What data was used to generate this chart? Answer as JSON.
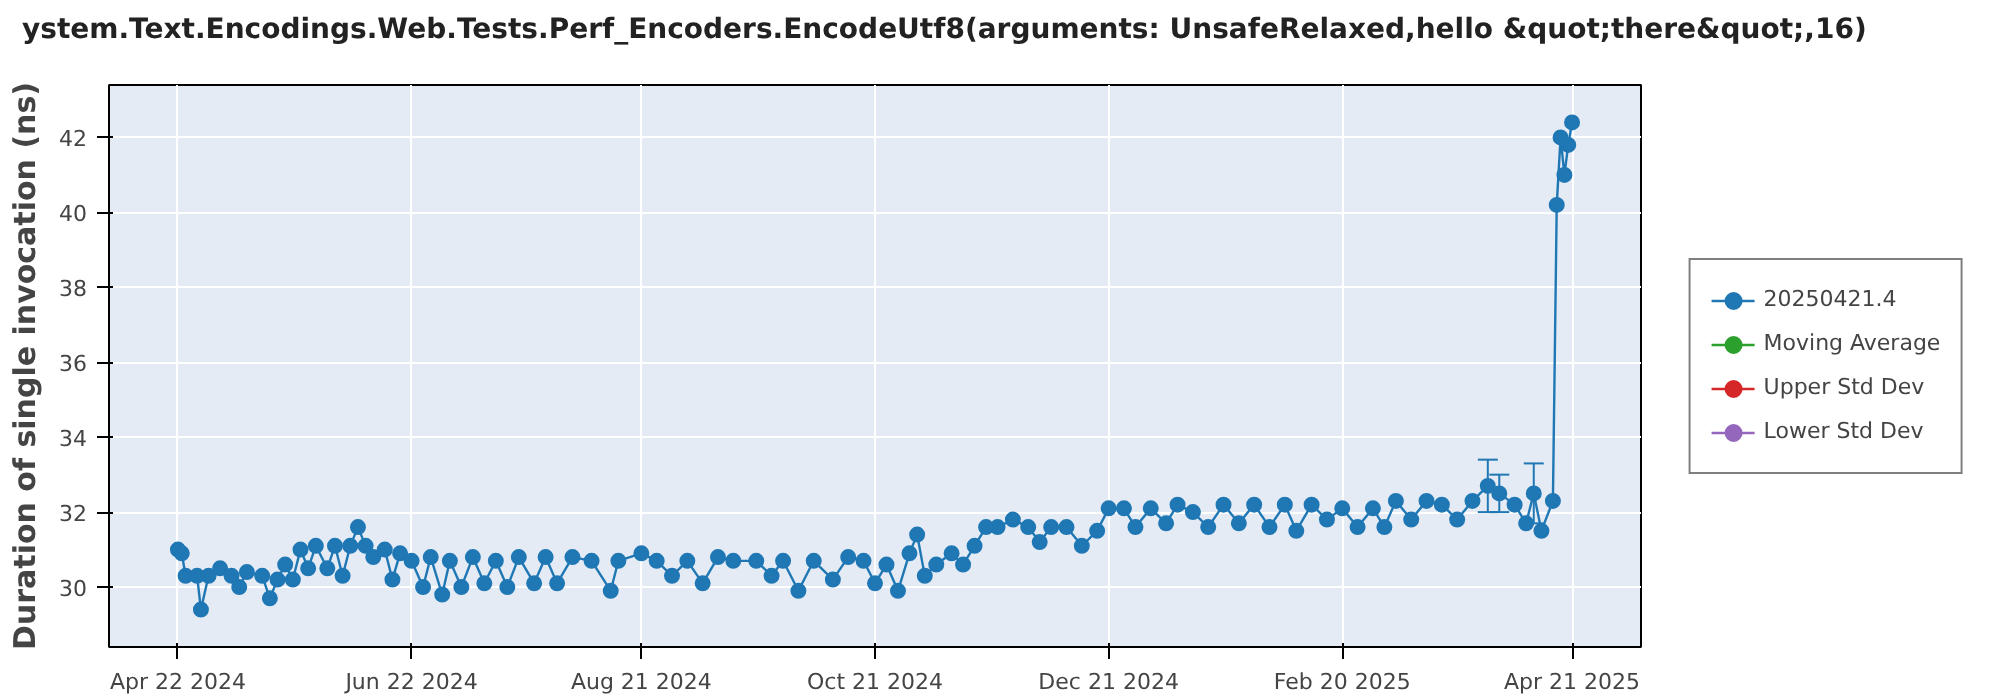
{
  "chart_data": {
    "type": "line",
    "title": "ystem.Text.Encodings.Web.Tests.Perf_Encoders.EncodeUtf8(arguments: UnsafeRelaxed,hello &quot;there&quot;,16)",
    "ylabel": "Duration of single invocation (ns)",
    "xlim": [
      "2024-04-04",
      "2025-05-09"
    ],
    "xticks": [
      {
        "value": "2024-04-22",
        "label": "Apr 22 2024"
      },
      {
        "value": "2024-06-22",
        "label": "Jun 22 2024"
      },
      {
        "value": "2024-08-21",
        "label": "Aug 21 2024"
      },
      {
        "value": "2024-10-21",
        "label": "Oct 21 2024"
      },
      {
        "value": "2024-12-21",
        "label": "Dec 21 2024"
      },
      {
        "value": "2025-02-20",
        "label": "Feb 20 2025"
      },
      {
        "value": "2025-04-21",
        "label": "Apr 21 2025"
      }
    ],
    "ylim": [
      28.4,
      43.4
    ],
    "yticks": [
      30,
      32,
      34,
      36,
      38,
      40,
      42
    ],
    "grid": true,
    "legend": "right",
    "marker": "circle",
    "line_style": "solid",
    "x": [
      "2024-04-22",
      "2024-04-23",
      "2024-04-24",
      "2024-04-27",
      "2024-04-28",
      "2024-04-30",
      "2024-05-03",
      "2024-05-06",
      "2024-05-08",
      "2024-05-10",
      "2024-05-14",
      "2024-05-16",
      "2024-05-18",
      "2024-05-20",
      "2024-05-22",
      "2024-05-24",
      "2024-05-26",
      "2024-05-28",
      "2024-05-31",
      "2024-06-02",
      "2024-06-04",
      "2024-06-06",
      "2024-06-08",
      "2024-06-10",
      "2024-06-12",
      "2024-06-15",
      "2024-06-17",
      "2024-06-19",
      "2024-06-22",
      "2024-06-25",
      "2024-06-27",
      "2024-06-30",
      "2024-07-02",
      "2024-07-05",
      "2024-07-08",
      "2024-07-11",
      "2024-07-14",
      "2024-07-17",
      "2024-07-20",
      "2024-07-24",
      "2024-07-27",
      "2024-07-30",
      "2024-08-03",
      "2024-08-08",
      "2024-08-13",
      "2024-08-15",
      "2024-08-21",
      "2024-08-25",
      "2024-08-29",
      "2024-09-02",
      "2024-09-06",
      "2024-09-10",
      "2024-09-14",
      "2024-09-20",
      "2024-09-24",
      "2024-09-27",
      "2024-10-01",
      "2024-10-05",
      "2024-10-10",
      "2024-10-14",
      "2024-10-18",
      "2024-10-21",
      "2024-10-24",
      "2024-10-27",
      "2024-10-30",
      "2024-11-01",
      "2024-11-03",
      "2024-11-06",
      "2024-11-10",
      "2024-11-13",
      "2024-11-16",
      "2024-11-19",
      "2024-11-22",
      "2024-11-26",
      "2024-11-30",
      "2024-12-03",
      "2024-12-06",
      "2024-12-10",
      "2024-12-14",
      "2024-12-18",
      "2024-12-21",
      "2024-12-25",
      "2024-12-28",
      "2025-01-01",
      "2025-01-05",
      "2025-01-08",
      "2025-01-12",
      "2025-01-16",
      "2025-01-20",
      "2025-01-24",
      "2025-01-28",
      "2025-02-01",
      "2025-02-05",
      "2025-02-08",
      "2025-02-12",
      "2025-02-16",
      "2025-02-20",
      "2025-02-24",
      "2025-02-28",
      "2025-03-03",
      "2025-03-06",
      "2025-03-10",
      "2025-03-14",
      "2025-03-18",
      "2025-03-22",
      "2025-03-26",
      "2025-03-30",
      "2025-04-02",
      "2025-04-06",
      "2025-04-09",
      "2025-04-11",
      "2025-04-13",
      "2025-04-16",
      "2025-04-17",
      "2025-04-18",
      "2025-04-19",
      "2025-04-20",
      "2025-04-21"
    ],
    "series": [
      {
        "name": "20250421.4",
        "color": "#1f77b4",
        "values": [
          31.0,
          30.9,
          30.3,
          30.3,
          29.4,
          30.3,
          30.5,
          30.3,
          30.0,
          30.4,
          30.3,
          29.7,
          30.2,
          30.6,
          30.2,
          31.0,
          30.5,
          31.1,
          30.5,
          31.1,
          30.3,
          31.1,
          31.6,
          31.1,
          30.8,
          31.0,
          30.2,
          30.9,
          30.7,
          30.0,
          30.8,
          29.8,
          30.7,
          30.0,
          30.8,
          30.1,
          30.7,
          30.0,
          30.8,
          30.1,
          30.8,
          30.1,
          30.8,
          30.7,
          29.9,
          30.7,
          30.9,
          30.7,
          30.3,
          30.7,
          30.1,
          30.8,
          30.7,
          30.7,
          30.3,
          30.7,
          29.9,
          30.7,
          30.2,
          30.8,
          30.7,
          30.1,
          30.6,
          29.9,
          30.9,
          31.4,
          30.3,
          30.6,
          30.9,
          30.6,
          31.1,
          31.6,
          31.6,
          31.8,
          31.6,
          31.2,
          31.6,
          31.6,
          31.1,
          31.5,
          32.1,
          32.1,
          31.6,
          32.1,
          31.7,
          32.2,
          32.0,
          31.6,
          32.2,
          31.7,
          32.2,
          31.6,
          32.2,
          31.5,
          32.2,
          31.8,
          32.1,
          31.6,
          32.1,
          31.6,
          32.3,
          31.8,
          32.3,
          32.2,
          31.8,
          32.3,
          32.7,
          32.5,
          32.2,
          31.7,
          32.5,
          31.5,
          32.3,
          40.2,
          42.0,
          41.0,
          41.8,
          42.4
        ],
        "errors": [
          null,
          null,
          null,
          null,
          null,
          null,
          null,
          null,
          null,
          null,
          null,
          null,
          null,
          null,
          null,
          null,
          null,
          null,
          null,
          null,
          null,
          null,
          null,
          null,
          null,
          null,
          null,
          null,
          null,
          null,
          null,
          null,
          null,
          null,
          null,
          null,
          null,
          null,
          null,
          null,
          null,
          null,
          null,
          null,
          null,
          null,
          null,
          null,
          null,
          null,
          null,
          null,
          null,
          null,
          null,
          null,
          null,
          null,
          null,
          null,
          null,
          null,
          null,
          null,
          null,
          null,
          null,
          null,
          null,
          null,
          null,
          null,
          null,
          null,
          null,
          null,
          null,
          null,
          null,
          null,
          null,
          null,
          null,
          null,
          null,
          null,
          null,
          null,
          null,
          null,
          null,
          null,
          null,
          null,
          null,
          null,
          null,
          null,
          null,
          null,
          null,
          null,
          null,
          null,
          null,
          null,
          0.7,
          0.5,
          null,
          null,
          0.8,
          null,
          null,
          null,
          null,
          null,
          null,
          null
        ]
      },
      {
        "name": "Moving Average",
        "color": "#2ca02c",
        "values": [
          null,
          null,
          null,
          null,
          null,
          null,
          null,
          null,
          null,
          null,
          null,
          null,
          null,
          null,
          null,
          null,
          null,
          null,
          null,
          null,
          null,
          null,
          null,
          null,
          null,
          null,
          null,
          null,
          null,
          null,
          null,
          null,
          null,
          null,
          null,
          null,
          null,
          null,
          null,
          null,
          null,
          null,
          null,
          null,
          null,
          null,
          null,
          null,
          null,
          null,
          null,
          null,
          null,
          null,
          null,
          null,
          null,
          null,
          null,
          null,
          null,
          null,
          null,
          null,
          null,
          null,
          null,
          null,
          null,
          null,
          null,
          null,
          null,
          null,
          null,
          null,
          null,
          null,
          null,
          null,
          null,
          null,
          null,
          null,
          null,
          null,
          null,
          null,
          null,
          null,
          null,
          null,
          null,
          null,
          null,
          null,
          null,
          null,
          null,
          null,
          null,
          null,
          null,
          null,
          null,
          null,
          null,
          null,
          null,
          null,
          null,
          null,
          null,
          null,
          null,
          null,
          null,
          null
        ]
      },
      {
        "name": "Upper Std Dev",
        "color": "#d62728",
        "values": [
          null,
          null,
          null,
          null,
          null,
          null,
          null,
          null,
          null,
          null,
          null,
          null,
          null,
          null,
          null,
          null,
          null,
          null,
          null,
          null,
          null,
          null,
          null,
          null,
          null,
          null,
          null,
          null,
          null,
          null,
          null,
          null,
          null,
          null,
          null,
          null,
          null,
          null,
          null,
          null,
          null,
          null,
          null,
          null,
          null,
          null,
          null,
          null,
          null,
          null,
          null,
          null,
          null,
          null,
          null,
          null,
          null,
          null,
          null,
          null,
          null,
          null,
          null,
          null,
          null,
          null,
          null,
          null,
          null,
          null,
          null,
          null,
          null,
          null,
          null,
          null,
          null,
          null,
          null,
          null,
          null,
          null,
          null,
          null,
          null,
          null,
          null,
          null,
          null,
          null,
          null,
          null,
          null,
          null,
          null,
          null,
          null,
          null,
          null,
          null,
          null,
          null,
          null,
          null,
          null,
          null,
          null,
          null,
          null,
          null,
          null,
          null,
          null,
          null,
          null,
          null,
          null,
          null
        ]
      },
      {
        "name": "Lower Std Dev",
        "color": "#9467bd",
        "values": [
          null,
          null,
          null,
          null,
          null,
          null,
          null,
          null,
          null,
          null,
          null,
          null,
          null,
          null,
          null,
          null,
          null,
          null,
          null,
          null,
          null,
          null,
          null,
          null,
          null,
          null,
          null,
          null,
          null,
          null,
          null,
          null,
          null,
          null,
          null,
          null,
          null,
          null,
          null,
          null,
          null,
          null,
          null,
          null,
          null,
          null,
          null,
          null,
          null,
          null,
          null,
          null,
          null,
          null,
          null,
          null,
          null,
          null,
          null,
          null,
          null,
          null,
          null,
          null,
          null,
          null,
          null,
          null,
          null,
          null,
          null,
          null,
          null,
          null,
          null,
          null,
          null,
          null,
          null,
          null,
          null,
          null,
          null,
          null,
          null,
          null,
          null,
          null,
          null,
          null,
          null,
          null,
          null,
          null,
          null,
          null,
          null,
          null,
          null,
          null,
          null,
          null,
          null,
          null,
          null,
          null,
          null,
          null,
          null,
          null,
          null,
          null,
          null,
          null,
          null,
          null,
          null,
          null
        ]
      }
    ]
  }
}
